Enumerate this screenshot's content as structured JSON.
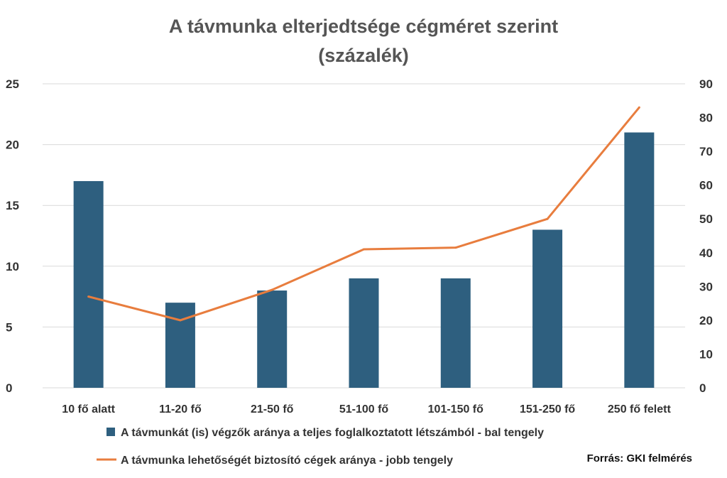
{
  "chart_data": {
    "type": "bar",
    "title_line1": "A távmunka elterjedtsége cégméret szerint",
    "title_line2": "(százalék)",
    "categories": [
      "10 fő alatt",
      "11-20 fő",
      "21-50 fő",
      "51-100 fő",
      "101-150 fő",
      "151-250 fő",
      "250 fő felett"
    ],
    "series": [
      {
        "name": "A távmunkát (is) végzők aránya a teljes foglalkoztatott létszámból - bal tengely",
        "type": "bar",
        "axis": "left",
        "color": "#2e5f7f",
        "values": [
          17,
          7,
          8,
          9,
          9,
          13,
          21
        ]
      },
      {
        "name": "A  távmunka lehetőségét biztosító cégek aránya - jobb tengely",
        "type": "line",
        "axis": "right",
        "color": "#e87d3e",
        "values": [
          27,
          20,
          29,
          41,
          41.5,
          50,
          83
        ]
      }
    ],
    "y_left": {
      "min": 0,
      "max": 25,
      "ticks": [
        "0",
        "5",
        "10",
        "15",
        "20",
        "25"
      ]
    },
    "y_right": {
      "min": 0,
      "max": 90,
      "ticks": [
        "0",
        "10",
        "20",
        "30",
        "40",
        "50",
        "60",
        "70",
        "80",
        "90"
      ]
    },
    "grid": true,
    "legend_position": "bottom",
    "source": "Forrás: GKI felmérés"
  }
}
